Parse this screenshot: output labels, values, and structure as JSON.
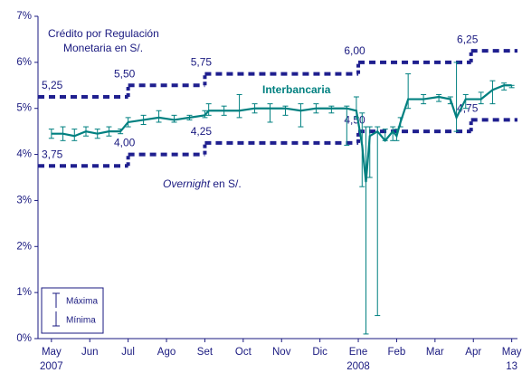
{
  "chart_data": {
    "type": "line",
    "xlim": [
      -0.35,
      12.15
    ],
    "xticks": [
      {
        "value": 0,
        "label": "May"
      },
      {
        "value": 1,
        "label": "Jun"
      },
      {
        "value": 2,
        "label": "Jul"
      },
      {
        "value": 3,
        "label": "Ago"
      },
      {
        "value": 4,
        "label": "Set"
      },
      {
        "value": 5,
        "label": "Oct"
      },
      {
        "value": 6,
        "label": "Nov"
      },
      {
        "value": 7,
        "label": "Dic"
      },
      {
        "value": 8,
        "label": "Ene"
      },
      {
        "value": 9,
        "label": "Feb"
      },
      {
        "value": 10,
        "label": "Mar"
      },
      {
        "value": 11,
        "label": "Apr"
      },
      {
        "value": 12,
        "label": "May"
      }
    ],
    "x_sublabels": [
      {
        "value": 0,
        "label": "2007"
      },
      {
        "value": 8,
        "label": "2008"
      },
      {
        "value": 12,
        "label": "13"
      }
    ],
    "ylim": [
      0,
      7
    ],
    "yticks": [
      {
        "value": 0,
        "label": "0%"
      },
      {
        "value": 1,
        "label": "1%"
      },
      {
        "value": 2,
        "label": "2%"
      },
      {
        "value": 3,
        "label": "3%"
      },
      {
        "value": 4,
        "label": "4%"
      },
      {
        "value": 5,
        "label": "5%"
      },
      {
        "value": 6,
        "label": "6%"
      },
      {
        "value": 7,
        "label": "7%"
      }
    ],
    "annotations": {
      "upper_1": "Crédito por Regulación",
      "upper_2": "Monetaria en S/.",
      "interbank": "Interbancaria",
      "lower_italic": "Overnight",
      "lower_rest": "en S/."
    },
    "legend": {
      "max": "Máxima",
      "min": "Mínima",
      "corner": "lower-left"
    },
    "corridors": [
      {
        "color": "#1f1f8f",
        "x": [
          -0.35,
          2,
          4,
          8,
          10.94
        ],
        "values": [
          5.25,
          5.5,
          5.75,
          6,
          6.25
        ],
        "value_labels": [
          "5,25",
          "5,50",
          "5,75",
          "6,00",
          "6,25"
        ]
      },
      {
        "color": "#1f1f8f",
        "x": [
          -0.35,
          2,
          4,
          8,
          10.94
        ],
        "values": [
          3.75,
          4,
          4.25,
          4.5,
          4.75
        ],
        "value_labels": [
          "3,75",
          "4,00",
          "4,25",
          "4,50",
          "4,75"
        ]
      }
    ],
    "series": [
      {
        "color": "#008080",
        "x": [
          0,
          0.3,
          0.6,
          0.9,
          1.2,
          1.5,
          1.8,
          2.0,
          2.4,
          2.8,
          3.2,
          3.6,
          4.0,
          4.1,
          4.5,
          4.9,
          5.3,
          5.7,
          6.1,
          6.5,
          6.9,
          7.3,
          7.7,
          7.95,
          8.1,
          8.2,
          8.3,
          8.5,
          8.7,
          8.9,
          9.0,
          9.1,
          9.3,
          9.7,
          10.1,
          10.4,
          10.56,
          10.8,
          11.2,
          11.5,
          11.8,
          12.0
        ],
        "values": [
          4.45,
          4.45,
          4.4,
          4.5,
          4.45,
          4.5,
          4.5,
          4.7,
          4.75,
          4.8,
          4.75,
          4.8,
          4.85,
          4.95,
          4.95,
          4.95,
          5.0,
          5.0,
          5.0,
          4.95,
          5.0,
          5.0,
          5.0,
          4.95,
          4.2,
          3.4,
          4.4,
          4.5,
          4.3,
          4.5,
          4.4,
          4.7,
          5.2,
          5.2,
          5.25,
          5.2,
          4.8,
          5.2,
          5.2,
          5.4,
          5.5,
          5.5
        ],
        "max": [
          4.55,
          4.6,
          4.55,
          4.6,
          4.55,
          4.6,
          4.55,
          4.8,
          4.85,
          4.95,
          4.85,
          4.85,
          4.95,
          5.1,
          5.05,
          5.3,
          5.1,
          5.1,
          5.05,
          5.1,
          5.1,
          5.05,
          5.05,
          5.25,
          4.9,
          4.6,
          4.6,
          4.6,
          4.55,
          4.6,
          4.55,
          4.8,
          5.75,
          5.3,
          5.3,
          5.25,
          6.0,
          5.3,
          5.35,
          5.6,
          5.55,
          5.5
        ],
        "min": [
          4.35,
          4.3,
          4.3,
          4.4,
          4.35,
          4.4,
          4.45,
          4.6,
          4.65,
          4.7,
          4.7,
          4.75,
          4.8,
          4.85,
          4.85,
          4.8,
          4.9,
          4.7,
          4.85,
          4.6,
          4.9,
          4.9,
          4.2,
          4.8,
          3.3,
          0.1,
          3.5,
          0.5,
          4.3,
          4.3,
          4.3,
          4.6,
          5.0,
          5.1,
          5.15,
          5.1,
          4.5,
          5.0,
          5.1,
          5.1,
          5.4,
          5.45
        ]
      }
    ]
  }
}
